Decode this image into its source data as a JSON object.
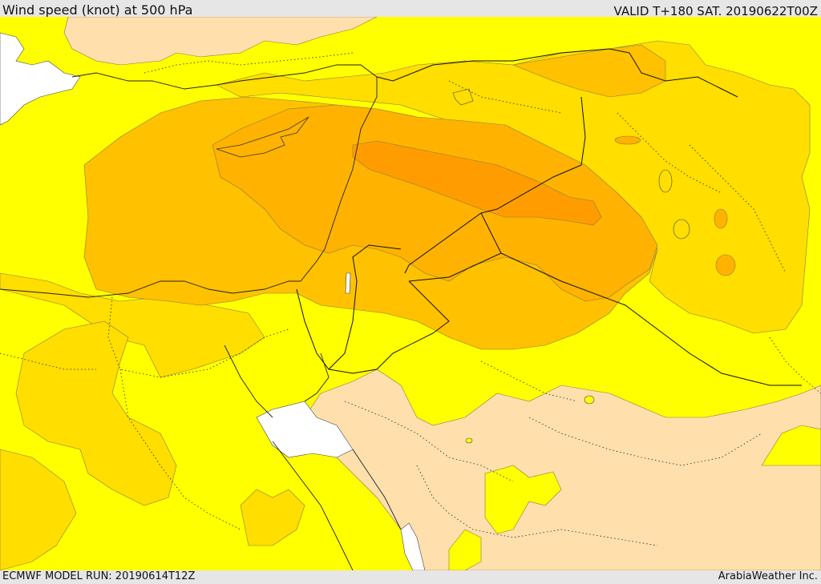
{
  "header": {
    "title": "Wind speed (knot) at 500 hPa",
    "valid": "VALID T+180 SAT. 20190622T00Z"
  },
  "footer": {
    "model_run": "ECMWF MODEL RUN: 20190614T12Z",
    "credit": "ArabiaWeather Inc."
  },
  "colors": {
    "level_low": "#ffe0ad",
    "level_1": "#ffff00",
    "level_2": "#ffde00",
    "level_3": "#ffc100",
    "level_4": "#ffb300",
    "level_5": "#ff9d00",
    "water": "#ffffff",
    "border": "#000000"
  }
}
